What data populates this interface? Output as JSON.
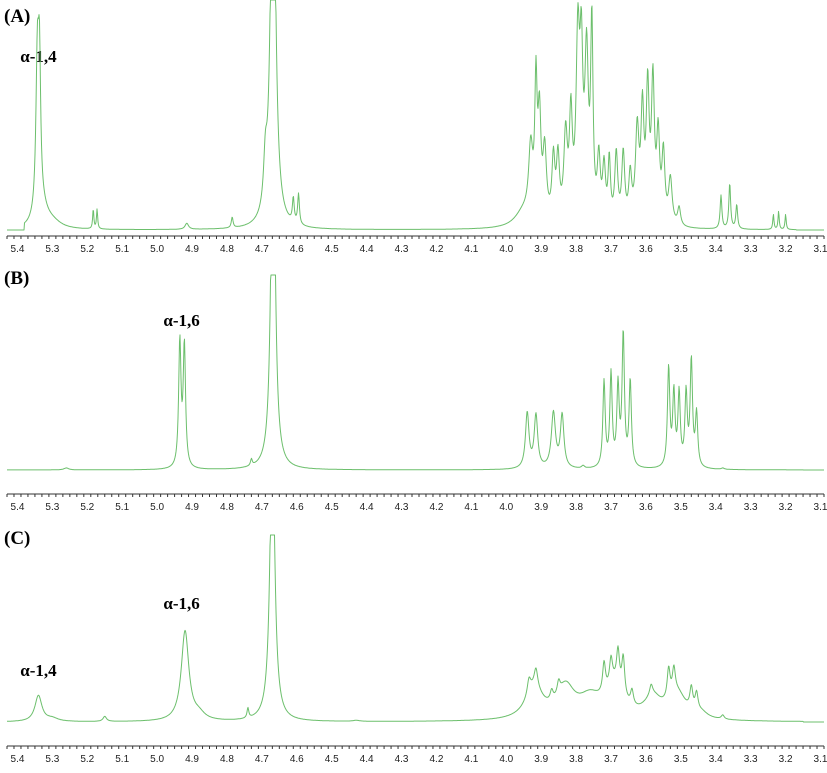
{
  "chart_data": [
    {
      "type": "line",
      "panel_label": "(A)",
      "x_ticks": [
        5.4,
        5.3,
        5.2,
        5.1,
        5.0,
        4.9,
        4.8,
        4.7,
        4.6,
        4.5,
        4.4,
        4.3,
        4.2,
        4.1,
        4.0,
        3.9,
        3.8,
        3.7,
        3.6,
        3.5,
        3.4,
        3.3,
        3.2,
        3.1
      ],
      "x_range": [
        5.43,
        3.09
      ],
      "x_reversed": true,
      "line_color": "#6cbf6c",
      "annotations": [
        {
          "text": "α-1,4",
          "x": 5.34
        }
      ],
      "range": [
        3.17,
        5.38
      ],
      "peaks": [
        [
          5.343,
          1.0,
          0.005
        ],
        [
          5.337,
          0.85,
          0.004
        ],
        [
          5.33,
          0.12,
          0.02
        ],
        [
          5.3,
          0.04,
          0.03
        ],
        [
          5.183,
          0.13,
          0.002
        ],
        [
          5.172,
          0.13,
          0.002
        ],
        [
          4.915,
          0.04,
          0.006
        ],
        [
          4.785,
          0.07,
          0.003
        ],
        [
          4.69,
          0.3,
          0.006
        ],
        [
          4.668,
          3.0,
          0.008
        ],
        [
          4.61,
          0.16,
          0.003
        ],
        [
          4.595,
          0.2,
          0.003
        ],
        [
          3.95,
          0.1,
          0.03
        ],
        [
          3.93,
          0.45,
          0.007
        ],
        [
          3.915,
          0.85,
          0.004
        ],
        [
          3.905,
          0.65,
          0.005
        ],
        [
          3.89,
          0.45,
          0.006
        ],
        [
          3.865,
          0.4,
          0.005
        ],
        [
          3.852,
          0.4,
          0.005
        ],
        [
          3.83,
          0.55,
          0.006
        ],
        [
          3.815,
          0.65,
          0.005
        ],
        [
          3.795,
          1.15,
          0.006
        ],
        [
          3.785,
          0.95,
          0.005
        ],
        [
          3.77,
          1.05,
          0.006
        ],
        [
          3.755,
          1.25,
          0.004
        ],
        [
          3.735,
          0.4,
          0.005
        ],
        [
          3.72,
          0.35,
          0.005
        ],
        [
          3.705,
          0.4,
          0.004
        ],
        [
          3.685,
          0.45,
          0.005
        ],
        [
          3.665,
          0.45,
          0.005
        ],
        [
          3.645,
          0.3,
          0.005
        ],
        [
          3.625,
          0.6,
          0.006
        ],
        [
          3.61,
          0.7,
          0.005
        ],
        [
          3.595,
          0.85,
          0.005
        ],
        [
          3.58,
          0.9,
          0.005
        ],
        [
          3.565,
          0.55,
          0.005
        ],
        [
          3.55,
          0.45,
          0.005
        ],
        [
          3.53,
          0.3,
          0.006
        ],
        [
          3.505,
          0.12,
          0.005
        ],
        [
          3.385,
          0.22,
          0.003
        ],
        [
          3.36,
          0.3,
          0.003
        ],
        [
          3.34,
          0.16,
          0.003
        ],
        [
          3.235,
          0.1,
          0.002
        ],
        [
          3.22,
          0.12,
          0.002
        ],
        [
          3.2,
          0.1,
          0.002
        ]
      ]
    },
    {
      "type": "line",
      "panel_label": "(B)",
      "x_ticks": [
        5.4,
        5.3,
        5.2,
        5.1,
        5.0,
        4.9,
        4.8,
        4.7,
        4.6,
        4.5,
        4.4,
        4.3,
        4.2,
        4.1,
        4.0,
        3.9,
        3.8,
        3.7,
        3.6,
        3.5,
        3.4,
        3.3,
        3.2,
        3.1
      ],
      "x_range": [
        5.43,
        3.09
      ],
      "x_reversed": true,
      "line_color": "#6cbf6c",
      "annotations": [
        {
          "text": "α-1,6",
          "x": 4.93
        }
      ],
      "range": [
        3.15,
        5.43
      ],
      "peaks": [
        [
          5.26,
          0.015,
          0.008
        ],
        [
          4.935,
          0.95,
          0.004
        ],
        [
          4.922,
          0.92,
          0.004
        ],
        [
          4.73,
          0.05,
          0.003
        ],
        [
          4.668,
          3.0,
          0.007
        ],
        [
          3.94,
          0.42,
          0.006
        ],
        [
          3.915,
          0.4,
          0.006
        ],
        [
          3.865,
          0.42,
          0.007
        ],
        [
          3.84,
          0.4,
          0.006
        ],
        [
          3.78,
          0.02,
          0.005
        ],
        [
          3.72,
          0.65,
          0.004
        ],
        [
          3.7,
          0.7,
          0.004
        ],
        [
          3.68,
          0.6,
          0.004
        ],
        [
          3.665,
          1.0,
          0.004
        ],
        [
          3.645,
          0.65,
          0.004
        ],
        [
          3.535,
          0.75,
          0.004
        ],
        [
          3.52,
          0.55,
          0.004
        ],
        [
          3.505,
          0.55,
          0.004
        ],
        [
          3.485,
          0.55,
          0.004
        ],
        [
          3.47,
          0.8,
          0.004
        ],
        [
          3.455,
          0.4,
          0.004
        ],
        [
          3.38,
          0.01,
          0.005
        ]
      ]
    },
    {
      "type": "line",
      "panel_label": "(C)",
      "x_ticks": [
        5.4,
        5.3,
        5.2,
        5.1,
        5.0,
        4.9,
        4.8,
        4.7,
        4.6,
        4.5,
        4.4,
        4.3,
        4.2,
        4.1,
        4.0,
        3.9,
        3.8,
        3.7,
        3.6,
        3.5,
        3.4,
        3.3,
        3.2,
        3.1
      ],
      "x_range": [
        5.43,
        3.09
      ],
      "x_reversed": true,
      "line_color": "#6cbf6c",
      "annotations": [
        {
          "text": "α-1,4",
          "x": 5.34
        },
        {
          "text": "α-1,6",
          "x": 4.93
        }
      ],
      "range": [
        3.15,
        5.43
      ],
      "peaks": [
        [
          5.34,
          0.26,
          0.012
        ],
        [
          5.3,
          0.03,
          0.02
        ],
        [
          5.15,
          0.05,
          0.006
        ],
        [
          4.92,
          0.9,
          0.013
        ],
        [
          4.88,
          0.06,
          0.02
        ],
        [
          4.74,
          0.1,
          0.003
        ],
        [
          4.67,
          3.0,
          0.008
        ],
        [
          4.43,
          0.01,
          0.01
        ],
        [
          3.92,
          0.3,
          0.03
        ],
        [
          3.83,
          0.3,
          0.03
        ],
        [
          3.76,
          0.2,
          0.04
        ],
        [
          3.69,
          0.3,
          0.03
        ],
        [
          3.58,
          0.2,
          0.03
        ],
        [
          3.51,
          0.25,
          0.03
        ],
        [
          3.44,
          0.05,
          0.02
        ],
        [
          3.935,
          0.15,
          0.006
        ],
        [
          3.915,
          0.18,
          0.006
        ],
        [
          3.87,
          0.1,
          0.005
        ],
        [
          3.85,
          0.12,
          0.005
        ],
        [
          3.72,
          0.3,
          0.005
        ],
        [
          3.7,
          0.25,
          0.005
        ],
        [
          3.68,
          0.35,
          0.005
        ],
        [
          3.665,
          0.38,
          0.005
        ],
        [
          3.64,
          0.15,
          0.005
        ],
        [
          3.585,
          0.1,
          0.005
        ],
        [
          3.535,
          0.3,
          0.005
        ],
        [
          3.52,
          0.25,
          0.005
        ],
        [
          3.47,
          0.22,
          0.005
        ],
        [
          3.455,
          0.18,
          0.005
        ],
        [
          3.38,
          0.04,
          0.005
        ]
      ]
    }
  ]
}
